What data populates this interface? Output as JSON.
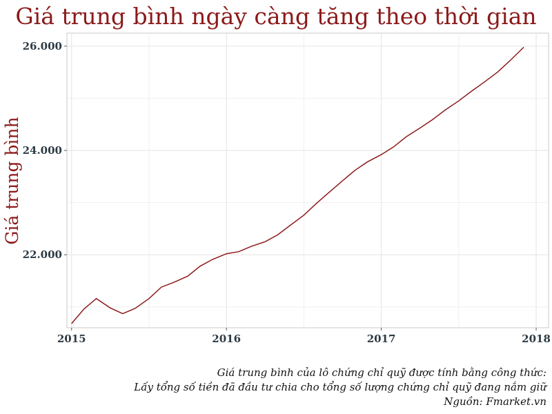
{
  "chart_data": {
    "type": "line",
    "title": "Giá trung bình ngày càng tăng theo thời gian",
    "xlabel": "",
    "ylabel": "Giá trung bình",
    "xlim": [
      2014.97,
      2018.08
    ],
    "ylim": [
      20600,
      26250
    ],
    "x_ticks": [
      2015,
      2016,
      2017,
      2018
    ],
    "x_tick_labels": [
      "2015",
      "2016",
      "2017",
      "2018"
    ],
    "y_ticks": [
      22000,
      24000,
      26000
    ],
    "y_tick_labels": [
      "22.000",
      "24.000",
      "26.000"
    ],
    "grid": true,
    "color": "#8b1a1a",
    "series": [
      {
        "x": [
          2015.0,
          2015.08,
          2015.16,
          2015.25,
          2015.33,
          2015.41,
          2015.5,
          2015.58,
          2015.66,
          2015.75,
          2015.83,
          2015.91,
          2016.0,
          2016.08,
          2016.16,
          2016.25,
          2016.33,
          2016.41,
          2016.5,
          2016.58,
          2016.66,
          2016.75,
          2016.83,
          2016.91,
          2017.0,
          2017.08,
          2017.16,
          2017.25,
          2017.33,
          2017.41,
          2017.5,
          2017.58,
          2017.66,
          2017.75,
          2017.83,
          2017.92
        ],
        "y": [
          20680,
          20960,
          21160,
          20980,
          20870,
          20970,
          21160,
          21380,
          21470,
          21590,
          21780,
          21910,
          22020,
          22060,
          22160,
          22250,
          22380,
          22560,
          22760,
          22980,
          23190,
          23420,
          23620,
          23780,
          23920,
          24070,
          24260,
          24430,
          24590,
          24770,
          24950,
          25130,
          25300,
          25500,
          25720,
          25980
        ]
      }
    ]
  },
  "caption": {
    "line1": "Giá trung bình của lô chứng chỉ quỹ được tính bằng công thức:",
    "line2": "Lấy tổng số tiền đã đầu tư chia cho tổng số lượng chứng chỉ quỹ đang nắm giữ",
    "line3": "Nguồn: Fmarket.vn"
  }
}
